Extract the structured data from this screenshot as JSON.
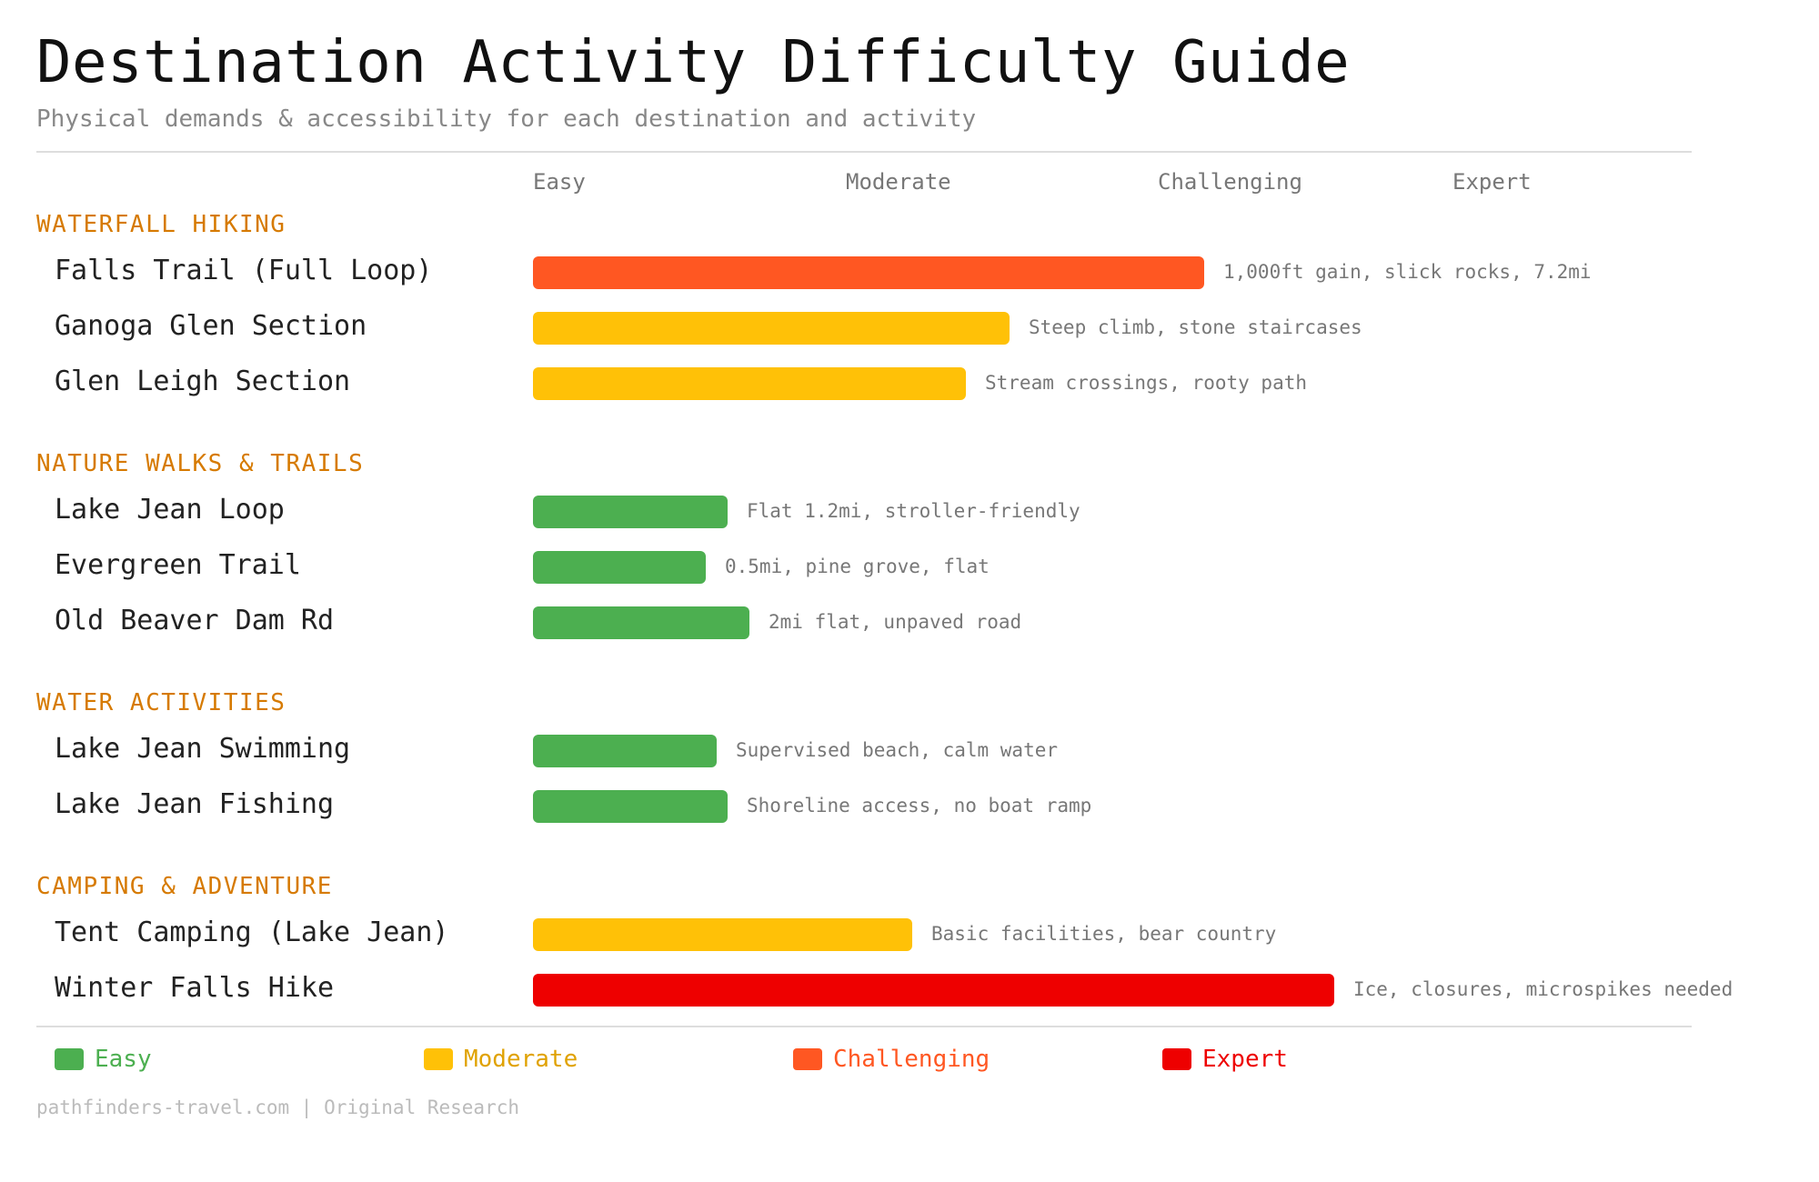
{
  "title": "Destination Activity Difficulty Guide",
  "subtitle": "Physical demands & accessibility for each destination and activity",
  "footer": "pathfinders-travel.com | Original Research",
  "colors": {
    "Easy": "#4caf50",
    "Moderate": "#ffc107",
    "Challenging": "#ff5722",
    "Expert": "#ee0000",
    "section": "#d67a00"
  },
  "chart_data": {
    "type": "bar",
    "orientation": "horizontal",
    "scale": [
      "Easy",
      "Moderate",
      "Challenging",
      "Expert"
    ],
    "xlim": [
      0,
      4.3
    ],
    "legend_position": "bottom",
    "grid": false,
    "groups": [
      {
        "name": "WATERFALL HIKING",
        "items": [
          {
            "label": "Falls Trail (Full Loop)",
            "value": 3.1,
            "level": "Challenging",
            "note": "1,000ft gain, slick rocks, 7.2mi"
          },
          {
            "label": "Ganoga Glen Section",
            "value": 2.2,
            "level": "Moderate",
            "note": "Steep climb, stone staircases"
          },
          {
            "label": "Glen Leigh Section",
            "value": 2.0,
            "level": "Moderate",
            "note": "Stream crossings, rooty path"
          }
        ]
      },
      {
        "name": "NATURE WALKS & TRAILS",
        "items": [
          {
            "label": "Lake Jean Loop",
            "value": 0.9,
            "level": "Easy",
            "note": "Flat 1.2mi, stroller-friendly"
          },
          {
            "label": "Evergreen Trail",
            "value": 0.8,
            "level": "Easy",
            "note": "0.5mi, pine grove, flat"
          },
          {
            "label": "Old Beaver Dam Rd",
            "value": 1.0,
            "level": "Easy",
            "note": "2mi flat, unpaved road"
          }
        ]
      },
      {
        "name": "WATER ACTIVITIES",
        "items": [
          {
            "label": "Lake Jean Swimming",
            "value": 0.85,
            "level": "Easy",
            "note": "Supervised beach, calm water"
          },
          {
            "label": "Lake Jean Fishing",
            "value": 0.9,
            "level": "Easy",
            "note": "Shoreline access, no boat ramp"
          }
        ]
      },
      {
        "name": "CAMPING & ADVENTURE",
        "items": [
          {
            "label": "Tent Camping (Lake Jean)",
            "value": 1.75,
            "level": "Moderate",
            "note": "Basic facilities, bear country"
          },
          {
            "label": "Winter Falls Hike",
            "value": 3.7,
            "level": "Expert",
            "note": "Ice, closures, microspikes needed"
          }
        ]
      }
    ],
    "legend": [
      "Easy",
      "Moderate",
      "Challenging",
      "Expert"
    ]
  }
}
